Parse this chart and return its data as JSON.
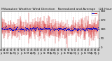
{
  "title": "Milwaukee Weather Wind Direction   Normalized and Average   (24 Hours) (Old)",
  "n_points": 300,
  "y_min": 0,
  "y_max": 360,
  "bar_color": "#cc0000",
  "avg_color": "#0000cc",
  "bg_color": "#d8d8d8",
  "plot_bg_color": "#ffffff",
  "grid_color": "#bbbbbb",
  "yticks": [
    0,
    90,
    180,
    270,
    360
  ],
  "n_xticks": 30,
  "title_fontsize": 3.2,
  "tick_fontsize": 2.8
}
